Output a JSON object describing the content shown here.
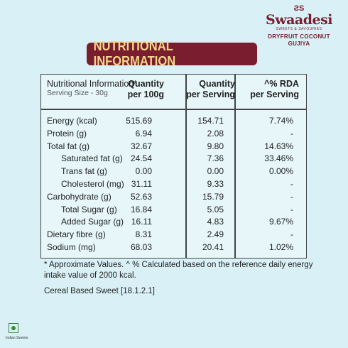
{
  "brand": {
    "logo_mark": "ƧS",
    "name": "Swaadesi",
    "tagline": "SWEETS & SAVOURIES",
    "product": "DRYFRUIT COCONUT GUJIYA"
  },
  "banner_title": "NUTRITIONAL INFORMATION",
  "table": {
    "header": {
      "title": "Nutritional Information*",
      "serving": "Serving Size - 30g",
      "col_per100": [
        "Quantity",
        "per 100g"
      ],
      "col_perserving": [
        "Quantity",
        "per Serving"
      ],
      "col_rda": [
        "^% RDA",
        "per Serving"
      ]
    },
    "rows": [
      {
        "label": "Energy (kcal)",
        "per100": "515.69",
        "perserving": "154.71",
        "rda": "7.74%"
      },
      {
        "label": "Protein (g)",
        "per100": "6.94",
        "perserving": "2.08",
        "rda": "-"
      },
      {
        "label": "Total fat (g)",
        "per100": "32.67",
        "perserving": "9.80",
        "rda": "14.63%"
      },
      {
        "label": "Saturated fat (g)",
        "per100": "24.54",
        "perserving": "7.36",
        "rda": "33.46%"
      },
      {
        "label": "Trans fat (g)",
        "per100": "0.00",
        "perserving": "0.00",
        "rda": "0.00%"
      },
      {
        "label": "Cholesterol (mg)",
        "per100": "31.11",
        "perserving": "9.33",
        "rda": "-"
      },
      {
        "label": "Carbohydrate (g)",
        "per100": "52.63",
        "perserving": "15.79",
        "rda": "-"
      },
      {
        "label": "Total Sugar (g)",
        "per100": "16.84",
        "perserving": "5.05",
        "rda": "-"
      },
      {
        "label": "Added Sugar (g)",
        "per100": "16.11",
        "perserving": "4.83",
        "rda": "9.67%"
      },
      {
        "label": "Dietary fibre (g)",
        "per100": "8.31",
        "perserving": "2.49",
        "rda": "-"
      },
      {
        "label": "Sodium (mg)",
        "per100": "68.03",
        "perserving": "20.41",
        "rda": "1.02%"
      }
    ]
  },
  "footnote": "* Approximate Values. ^ % Calculated based on the reference daily energy intake value of 2000 kcal.",
  "category": "Cereal Based Sweet [18.1.2.1]",
  "veg_label": "Indian Sweets"
}
